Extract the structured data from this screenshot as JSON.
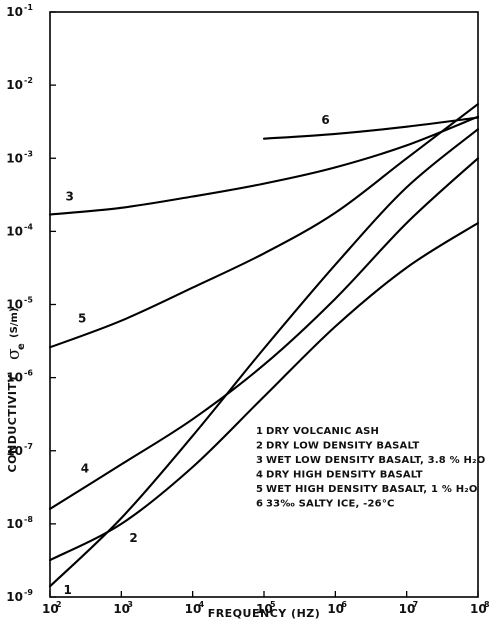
{
  "chart_data": {
    "type": "line",
    "x_scale": "log",
    "y_scale": "log",
    "xlim": [
      100,
      100000000
    ],
    "ylim": [
      1e-09,
      0.1
    ],
    "xlabel": "FREQUENCY (HZ)",
    "ylabel": "CONDUCTIVITY",
    "ylabel_symbol": "σ",
    "ylabel_subscript": "e",
    "ylabel_unit": "(S/m)",
    "x_ticks": [
      {
        "value": 100,
        "base": "10",
        "exp": "2"
      },
      {
        "value": 1000,
        "base": "10",
        "exp": "3"
      },
      {
        "value": 10000,
        "base": "10",
        "exp": "4"
      },
      {
        "value": 100000,
        "base": "10",
        "exp": "5"
      },
      {
        "value": 1000000,
        "base": "10",
        "exp": "6"
      },
      {
        "value": 10000000,
        "base": "10",
        "exp": "7"
      },
      {
        "value": 100000000,
        "base": "10",
        "exp": "8"
      }
    ],
    "y_ticks": [
      {
        "value": 1e-09,
        "base": "10",
        "exp": "-9"
      },
      {
        "value": 1e-08,
        "base": "10",
        "exp": "-8"
      },
      {
        "value": 1e-07,
        "base": "10",
        "exp": "-7"
      },
      {
        "value": 1e-06,
        "base": "10",
        "exp": "-6"
      },
      {
        "value": 1e-05,
        "base": "10",
        "exp": "-5"
      },
      {
        "value": 0.0001,
        "base": "10",
        "exp": "-4"
      },
      {
        "value": 0.001,
        "base": "10",
        "exp": "-3"
      },
      {
        "value": 0.01,
        "base": "10",
        "exp": "-2"
      },
      {
        "value": 0.1,
        "base": "10",
        "exp": "-1"
      }
    ],
    "series": [
      {
        "id": "1",
        "label": "1",
        "legend": "DRY VOLCANIC ASH",
        "points": [
          [
            100,
            1.4e-09
          ],
          [
            1000,
            1.2e-08
          ],
          [
            10000,
            1.6e-07
          ],
          [
            100000,
            2.5e-06
          ],
          [
            1000000,
            3.5e-05
          ],
          [
            10000000,
            0.0004
          ],
          [
            100000000,
            0.0025
          ]
        ]
      },
      {
        "id": "2",
        "label": "2",
        "legend": "DRY LOW DENSITY BASALT",
        "points": [
          [
            100,
            3.2e-09
          ],
          [
            1000,
            1e-08
          ],
          [
            10000,
            6e-08
          ],
          [
            100000,
            5.5e-07
          ],
          [
            1000000,
            5e-06
          ],
          [
            10000000,
            3.2e-05
          ],
          [
            100000000,
            0.00013
          ]
        ]
      },
      {
        "id": "3",
        "label": "3",
        "legend": "WET LOW DENSITY BASALT, 3.8 % H₂O",
        "points": [
          [
            100,
            0.00017
          ],
          [
            1000,
            0.00021
          ],
          [
            10000,
            0.0003
          ],
          [
            100000,
            0.00045
          ],
          [
            1000000,
            0.00075
          ],
          [
            10000000,
            0.0015
          ],
          [
            100000000,
            0.0037
          ]
        ]
      },
      {
        "id": "4",
        "label": "4",
        "legend": "DRY HIGH DENSITY BASALT",
        "points": [
          [
            100,
            1.6e-08
          ],
          [
            1000,
            6.5e-08
          ],
          [
            10000,
            2.7e-07
          ],
          [
            100000,
            1.5e-06
          ],
          [
            1000000,
            1.2e-05
          ],
          [
            10000000,
            0.00013
          ],
          [
            100000000,
            0.001
          ]
        ]
      },
      {
        "id": "5",
        "label": "5",
        "legend": "WET HIGH DENSITY BASALT, 1 % H₂O",
        "points": [
          [
            100,
            2.6e-06
          ],
          [
            1000,
            6e-06
          ],
          [
            10000,
            1.7e-05
          ],
          [
            100000,
            5e-05
          ],
          [
            1000000,
            0.00018
          ],
          [
            10000000,
            0.001
          ],
          [
            100000000,
            0.0055
          ]
        ]
      },
      {
        "id": "6",
        "label": "6",
        "legend": "33‰ SALTY ICE, -26°C",
        "points": [
          [
            100000,
            0.00185
          ],
          [
            1000000,
            0.00215
          ],
          [
            10000000,
            0.0027
          ],
          [
            100000000,
            0.0036
          ]
        ]
      }
    ]
  }
}
